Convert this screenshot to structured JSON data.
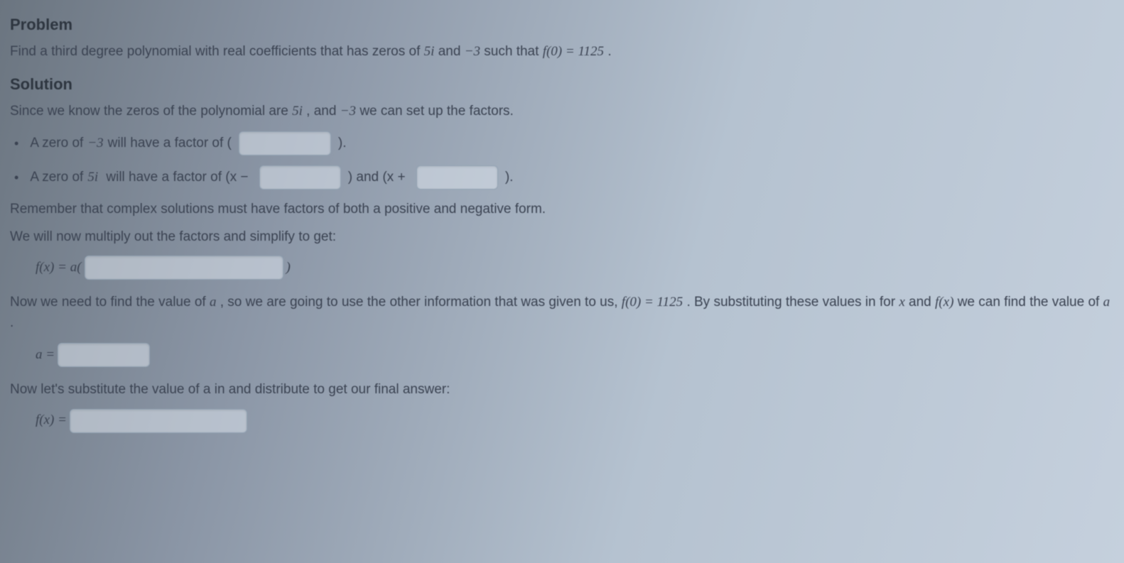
{
  "heading_problem": "Problem",
  "problem_text_1": "Find a third degree polynomial with real coefficients that has zeros of ",
  "zero_1": "5i",
  "problem_text_2": " and ",
  "zero_2": "−3",
  "problem_text_3": " such that ",
  "f0_expr": "f(0) = 1125",
  "problem_text_4": ".",
  "heading_solution": "Solution",
  "solution_intro_1": "Since we know the zeros of the polynomial are ",
  "solution_intro_val1": "5i",
  "solution_intro_2": ", and ",
  "solution_intro_val2": "−3",
  "solution_intro_3": " we can set up the factors.",
  "bullet1_a": "A zero of ",
  "bullet1_val": "−3",
  "bullet1_b": " will have a factor of (",
  "bullet1_c": ").",
  "bullet2_a": "A zero of ",
  "bullet2_val": "5i",
  "bullet2_b": " will have a factor of (x − ",
  "bullet2_c": ") and (x + ",
  "bullet2_d": ").",
  "remember": "Remember that complex solutions must have factors of both a positive and negative form.",
  "multiply_out": "We will now multiply out the factors and simplify to get:",
  "fx_eq_a_open": "f(x) = a(",
  "close_paren": ")",
  "find_a_1": "Now we need to find the value of ",
  "var_a": "a",
  "find_a_2": ", so we are going to use the other information that was given to us, ",
  "f0_expr_2": "f(0) = 1125",
  "find_a_3": ". By substituting these values in for ",
  "var_x": "x",
  "find_a_4": " and ",
  "fx": "f(x)",
  "find_a_5": " we can find the value of ",
  "find_a_6": ".",
  "a_eq": "a = ",
  "substitute": "Now let's substitute the value of a in and distribute to get our final answer:",
  "fx_eq": "f(x) = "
}
